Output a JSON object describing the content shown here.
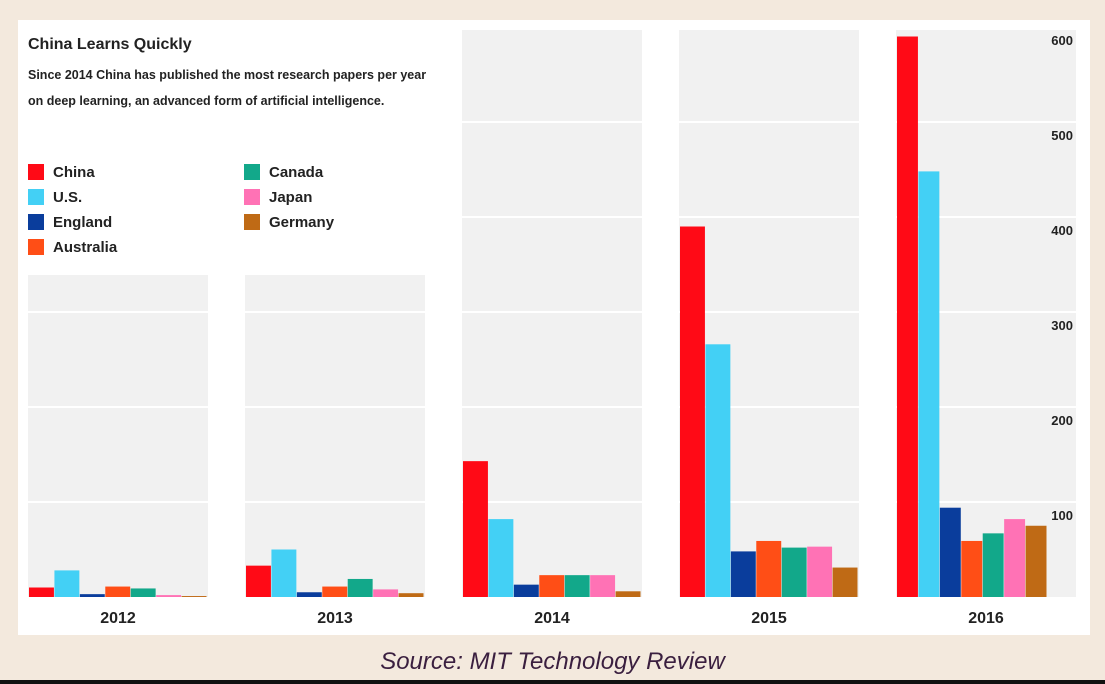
{
  "chart_data": {
    "type": "bar",
    "title": "China Learns Quickly",
    "subtitle": "Since 2014 China has published the most research papers per year on deep learning, an advanced form of artificial intelligence.",
    "categories": [
      "2012",
      "2013",
      "2014",
      "2015",
      "2016"
    ],
    "series": [
      {
        "name": "China",
        "color": "#ff0a16",
        "values": [
          10,
          33,
          143,
          390,
          590
        ]
      },
      {
        "name": "U.S.",
        "color": "#43d0f5",
        "values": [
          28,
          50,
          82,
          266,
          448
        ]
      },
      {
        "name": "England",
        "color": "#0a3d9c",
        "values": [
          3,
          5,
          13,
          48,
          94
        ]
      },
      {
        "name": "Australia",
        "color": "#ff4e16",
        "values": [
          11,
          11,
          23,
          59,
          59
        ]
      },
      {
        "name": "Canada",
        "color": "#12a88a",
        "values": [
          9,
          19,
          23,
          52,
          67
        ]
      },
      {
        "name": "Japan",
        "color": "#ff72b5",
        "values": [
          2,
          8,
          23,
          53,
          82
        ]
      },
      {
        "name": "Germany",
        "color": "#bf6a15",
        "values": [
          1,
          4,
          6,
          31,
          75
        ]
      }
    ],
    "yticks": [
      "100",
      "200",
      "300",
      "400",
      "500",
      "600"
    ],
    "ylim": [
      0,
      600
    ],
    "grid": true,
    "legend_position": "top-left"
  },
  "source": "Source: MIT Technology Review"
}
